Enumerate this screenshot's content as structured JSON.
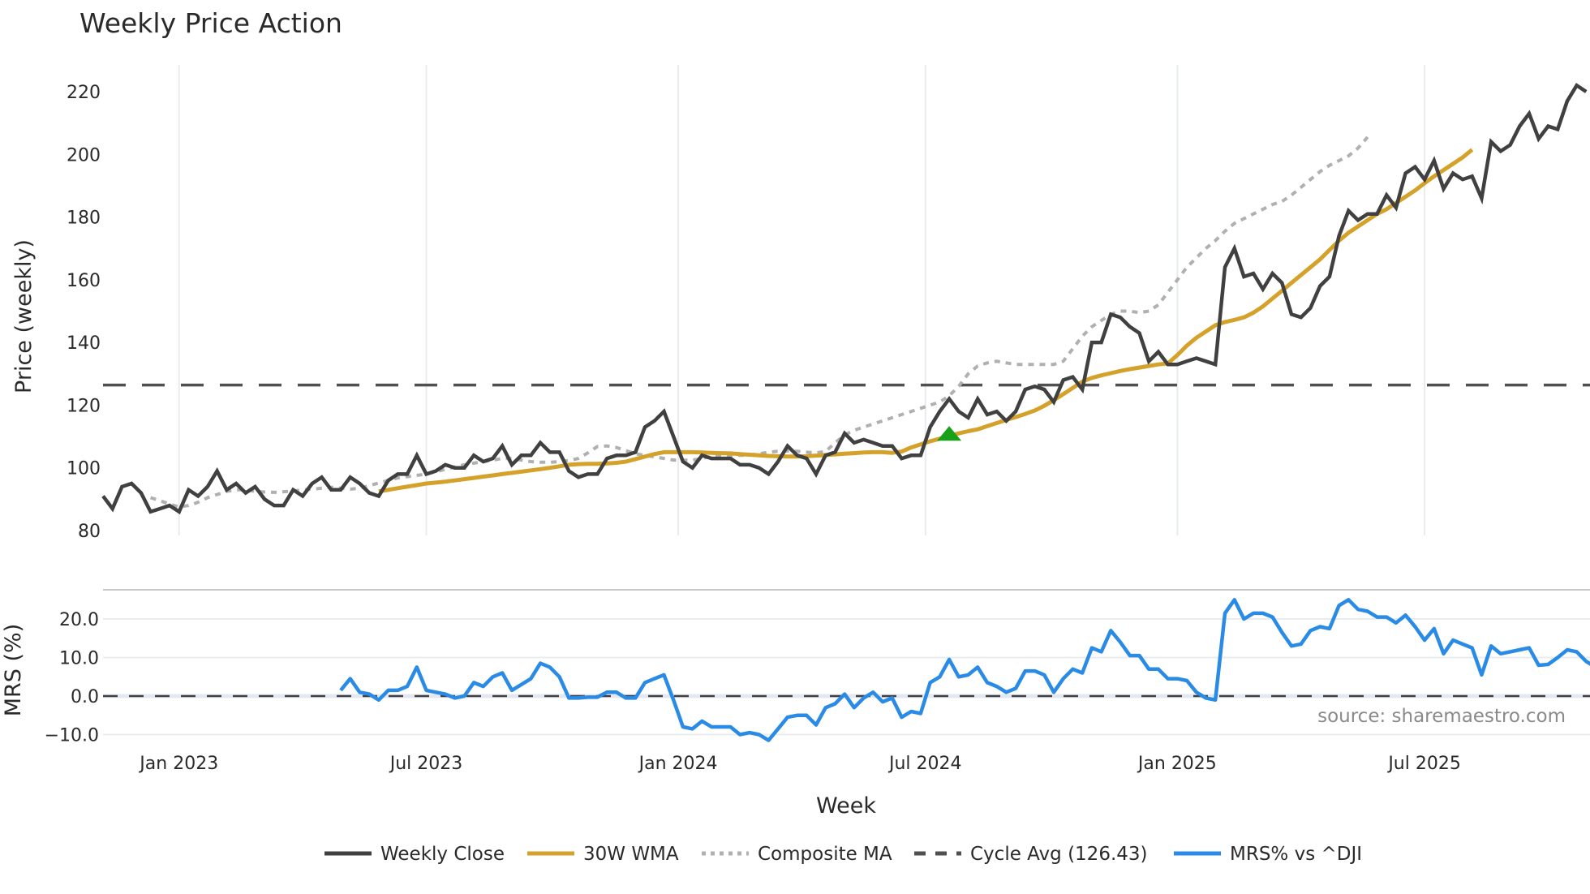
{
  "title": "Weekly Price Action",
  "source_note": "source: sharemaestro.com",
  "legend": [
    {
      "label": "Weekly Close",
      "color": "#404040",
      "style": "solid"
    },
    {
      "label": "30W WMA",
      "color": "#d4a22a",
      "style": "solid"
    },
    {
      "label": "Composite MA",
      "color": "#b0b0b0",
      "style": "dotted"
    },
    {
      "label": "Cycle Avg (126.43)",
      "color": "#505050",
      "style": "dashed"
    },
    {
      "label": "MRS% vs ^DJI",
      "color": "#2a8be6",
      "style": "solid"
    }
  ],
  "colors": {
    "close": "#404040",
    "wma": "#d4a22a",
    "composite": "#b0b0b0",
    "cycle": "#505050",
    "mrs": "#2a8be6",
    "marker": "#18a018",
    "grid": "#e8ecef"
  },
  "chart_data": [
    {
      "type": "line",
      "title": "Weekly Price Action",
      "xlabel": "Week",
      "ylabel": "Price (weekly)",
      "ylim": [
        78,
        228
      ],
      "yticks": [
        80,
        100,
        120,
        140,
        160,
        180,
        200,
        220
      ],
      "xticks": [
        "Jan 2023",
        "Jul 2023",
        "Jan 2024",
        "Jul 2024",
        "Jan 2025",
        "Jul 2025"
      ],
      "xtick_week_index": [
        8,
        34,
        60.5,
        86.5,
        113,
        139
      ],
      "grid": true,
      "start_week": "2022-11-07",
      "reference_line": {
        "label": "Cycle Avg (126.43)",
        "value": 126.43
      },
      "marker": {
        "type": "triangle-up",
        "week_index": 89,
        "value": 111
      },
      "series": [
        {
          "name": "Weekly Close",
          "start_index": 0,
          "values": [
            91,
            87,
            94,
            95,
            92,
            86,
            87,
            88,
            86,
            93,
            91,
            94,
            99,
            93,
            95,
            92,
            94,
            90,
            88,
            88,
            93,
            91,
            95,
            97,
            93,
            93,
            97,
            95,
            92,
            91,
            96,
            98,
            98,
            104,
            98,
            99,
            101,
            100,
            100,
            104,
            102,
            103,
            107,
            101,
            104,
            104,
            108,
            105,
            105,
            99,
            97,
            98,
            98,
            103,
            104,
            104,
            105,
            113,
            115,
            118,
            110,
            102,
            100,
            104,
            103,
            103,
            103,
            101,
            101,
            100,
            98,
            102,
            107,
            104,
            103,
            98,
            104,
            105,
            111,
            108,
            109,
            108,
            107,
            107,
            103,
            104,
            104,
            113,
            118,
            122,
            118,
            116,
            122,
            117,
            118,
            115,
            118,
            125,
            126,
            125,
            121,
            128,
            129,
            125,
            140,
            140,
            149,
            148,
            145,
            143,
            134,
            137,
            133,
            133,
            134,
            135,
            134,
            133,
            164,
            170,
            161,
            162,
            157,
            162,
            159,
            149,
            148,
            151,
            158,
            161,
            174,
            182,
            179,
            181,
            181,
            187,
            183,
            194,
            196,
            192,
            198,
            189,
            194,
            192,
            193,
            186,
            204,
            201,
            203,
            209,
            213,
            205,
            209,
            208,
            217,
            222,
            220
          ]
        },
        {
          "name": "30W WMA",
          "start_index": 29,
          "values": [
            92.5,
            93,
            93.5,
            94,
            94.5,
            95,
            95.3,
            95.6,
            96,
            96.4,
            96.8,
            97.2,
            97.6,
            98,
            98.4,
            98.8,
            99.2,
            99.6,
            100,
            100.5,
            101,
            101.2,
            101.3,
            101.3,
            101.4,
            101.6,
            102,
            102.8,
            103.6,
            104.4,
            105,
            105,
            105,
            105,
            104.9,
            104.8,
            104.7,
            104.6,
            104.4,
            104.2,
            104,
            103.8,
            103.7,
            103.6,
            103.6,
            103.7,
            103.9,
            104.1,
            104.3,
            104.5,
            104.7,
            104.9,
            105,
            105,
            104.8,
            105.2,
            106.5,
            107.5,
            108.5,
            109.3,
            110.2,
            111,
            111.7,
            112.3,
            113.3,
            114.3,
            115.3,
            116.2,
            117.2,
            118.3,
            119.8,
            121.6,
            123.5,
            125.5,
            127.5,
            128.7,
            129.5,
            130.2,
            130.9,
            131.5,
            132,
            132.5,
            133,
            133.3,
            136,
            139,
            141.5,
            143.5,
            145.5,
            146.5,
            147.2,
            148,
            149.5,
            151.5,
            154,
            156.5,
            159,
            161.5,
            164,
            166.5,
            169.5,
            172.5,
            175,
            177,
            179,
            181,
            182.5,
            184.5,
            186.5,
            188.5,
            190.8,
            193,
            195,
            197,
            199,
            201.5
          ]
        },
        {
          "name": "Composite MA",
          "start_index": 5,
          "values": [
            90.5,
            89.5,
            88.5,
            87.5,
            88,
            89,
            90.5,
            91.5,
            92.5,
            93,
            93,
            92.5,
            92.3,
            92.2,
            92.4,
            92.6,
            93,
            93.2,
            93.5,
            93.8,
            93.5,
            93.2,
            93.5,
            94.3,
            95.2,
            96,
            96.8,
            97.2,
            97.6,
            98,
            98.8,
            99.5,
            100.3,
            101,
            101.5,
            102,
            102.5,
            103,
            103,
            102.5,
            102,
            101.8,
            101.8,
            102,
            102.3,
            103,
            104.8,
            106.8,
            107,
            106.5,
            105.5,
            104.5,
            104,
            103.5,
            103,
            102.5,
            102.4,
            102.5,
            103,
            103.6,
            104,
            104,
            104,
            104.1,
            104.5,
            105,
            105.3,
            105.4,
            105.3,
            105,
            104.8,
            105.2,
            108,
            110.5,
            112,
            113,
            114,
            115,
            116,
            117,
            118,
            119,
            120,
            121,
            123,
            126,
            130,
            132.5,
            133.5,
            134,
            133.5,
            133,
            133,
            133,
            133,
            133,
            134,
            138,
            142,
            145,
            147,
            149,
            150,
            150,
            149.5,
            150,
            152,
            156,
            160,
            164,
            167,
            170,
            172.5,
            175.5,
            178,
            179.5,
            181,
            182.5,
            184,
            185,
            187,
            189.5,
            192,
            194.5,
            196.5,
            198,
            199.5,
            202,
            205.5
          ]
        },
        {
          "name": "Cycle Avg",
          "constant": 126.43
        }
      ]
    },
    {
      "type": "line",
      "ylabel": "MRS (%)",
      "ylim": [
        -13,
        27
      ],
      "yticks": [
        -10.0,
        0.0,
        10.0,
        20.0
      ],
      "ytick_labels": [
        "−10.0",
        "0.0",
        "10.0",
        "20.0"
      ],
      "reference_line": {
        "value": 0
      },
      "series": [
        {
          "name": "MRS% vs ^DJI",
          "start_index": 25,
          "values": [
            1.5,
            4.5,
            1,
            0.5,
            -1,
            1.5,
            1.5,
            2.5,
            7.5,
            1.5,
            1,
            0.5,
            -0.5,
            0,
            3.5,
            2.5,
            5,
            6,
            1.5,
            3,
            4.5,
            8.5,
            7.5,
            5,
            -0.5,
            -0.5,
            -0.3,
            -0.3,
            1,
            1,
            -0.5,
            -0.5,
            3.5,
            4.5,
            5.5,
            -1,
            -8,
            -8.5,
            -6.5,
            -8,
            -8,
            -8,
            -10,
            -9.5,
            -10,
            -11.5,
            -8.5,
            -5.5,
            -5,
            -5,
            -7.5,
            -3,
            -2,
            0.5,
            -3,
            -0.5,
            1,
            -1.5,
            -0.5,
            -5.5,
            -4,
            -4.5,
            3.5,
            5,
            9.5,
            5,
            5.5,
            7.5,
            3.5,
            2.5,
            1,
            2,
            6.5,
            6.5,
            5.5,
            1,
            4.5,
            7,
            6,
            12.5,
            11.5,
            17,
            14,
            10.5,
            10.5,
            7,
            7,
            4.5,
            4.5,
            4,
            1,
            -0.5,
            -1,
            21.5,
            25,
            20,
            21.5,
            21.5,
            20.5,
            16.5,
            13,
            13.5,
            17,
            18,
            17.5,
            23.5,
            25,
            22.5,
            22,
            20.5,
            20.5,
            19,
            21,
            18,
            14.5,
            17.5,
            11,
            14.5,
            13.5,
            12.5,
            5.5,
            13,
            11,
            11.5,
            12,
            12.5,
            8,
            8.2,
            10,
            12,
            11.5,
            9,
            7.5
          ]
        }
      ]
    }
  ]
}
